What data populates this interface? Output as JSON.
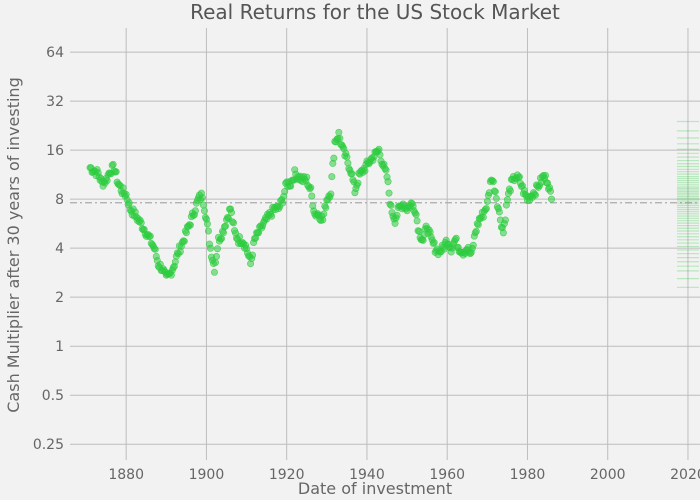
{
  "chart_data": {
    "type": "scatter",
    "title": "Real Returns for the US Stock Market",
    "xlabel": "Date of investment",
    "ylabel": "Cash Multiplier after 30 years of investing",
    "y_scale": "log2",
    "xlim": [
      1866,
      2023
    ],
    "ylim": [
      0.2,
      90
    ],
    "x_ticks": [
      1880,
      1900,
      1920,
      1940,
      1960,
      1980,
      2000,
      2020
    ],
    "x_tick_labels": [
      "1880",
      "1900",
      "1920",
      "1940",
      "1960",
      "1980",
      "2000",
      "2020"
    ],
    "y_ticks": [
      0.25,
      0.5,
      1,
      2,
      4,
      8,
      16,
      32,
      64
    ],
    "y_tick_labels": [
      "0.25",
      "0.5",
      "1",
      "2",
      "4",
      "8",
      "16",
      "32",
      "64"
    ],
    "grid": true,
    "colors": {
      "points": "#2ecc40",
      "background": "#f2f2f2",
      "grid": "#bdbdbd"
    },
    "reference_line": {
      "y": 7.6,
      "style": "dash-dot"
    },
    "series": [
      {
        "x": [
          1871,
          1872,
          1873,
          1874,
          1875,
          1876,
          1877,
          1878,
          1879,
          1880,
          1881,
          1882,
          1883,
          1884,
          1885,
          1886,
          1887,
          1888,
          1889,
          1890,
          1891,
          1892,
          1893,
          1894,
          1895,
          1896,
          1897,
          1898,
          1899,
          1900,
          1901,
          1902,
          1903,
          1904,
          1905,
          1906,
          1907,
          1908,
          1909,
          1910,
          1911,
          1912,
          1913,
          1914,
          1915,
          1916,
          1917,
          1918,
          1919,
          1920,
          1921,
          1922,
          1923,
          1924,
          1925,
          1926,
          1927,
          1928,
          1929,
          1930,
          1931,
          1932,
          1933,
          1934,
          1935,
          1936,
          1937,
          1938,
          1939,
          1940,
          1941,
          1942,
          1943,
          1944,
          1945,
          1946,
          1947,
          1948,
          1949,
          1950,
          1951,
          1952,
          1953,
          1954,
          1955,
          1956,
          1957,
          1958,
          1959,
          1960,
          1961,
          1962,
          1963,
          1964,
          1965,
          1966,
          1967,
          1968,
          1969,
          1970,
          1971,
          1972,
          1973,
          1974,
          1975,
          1976,
          1977,
          1978,
          1979,
          1980,
          1981,
          1982,
          1983,
          1984,
          1985,
          1986
        ],
        "y": [
          12.5,
          12,
          11.5,
          10,
          10.5,
          12,
          12.5,
          10,
          9,
          8.5,
          7,
          6.5,
          6,
          5.5,
          5,
          4.5,
          4,
          3.2,
          3,
          2.6,
          2.8,
          3.2,
          3.8,
          4.3,
          5,
          5.8,
          6.8,
          8,
          8.5,
          6,
          4,
          3,
          4.5,
          5,
          6,
          7,
          5,
          4.5,
          4.5,
          4,
          3.2,
          4.5,
          5,
          5.5,
          6,
          6.5,
          7,
          7,
          8,
          10,
          10,
          11.5,
          11,
          10.5,
          10.5,
          9,
          6.5,
          6.5,
          6,
          8,
          9,
          18,
          20,
          16,
          14,
          12,
          9,
          11,
          12,
          13,
          14,
          15,
          16,
          13,
          11,
          7,
          6,
          7,
          7.5,
          7,
          7.5,
          7,
          5,
          4.5,
          5.5,
          4.5,
          4,
          3.8,
          4,
          4.5,
          4,
          4.5,
          4,
          3.8,
          4,
          3.6,
          5,
          6,
          6.5,
          7.5,
          11,
          9,
          6.5,
          5,
          8,
          10,
          11,
          10.5,
          9,
          8,
          8.5,
          9,
          10,
          11,
          10.5,
          8
        ]
      }
    ],
    "distribution": {
      "x": 2020,
      "values": [
        2.3,
        2.6,
        2.9,
        3.1,
        3.3,
        3.5,
        3.7,
        3.9,
        4.1,
        4.3,
        4.5,
        4.7,
        4.9,
        5.1,
        5.3,
        5.5,
        5.7,
        5.9,
        6.1,
        6.3,
        6.5,
        6.7,
        6.9,
        7.1,
        7.3,
        7.5,
        7.7,
        7.9,
        8.1,
        8.3,
        8.5,
        8.7,
        8.9,
        9.1,
        9.3,
        9.5,
        9.8,
        10.1,
        10.4,
        10.7,
        11,
        11.4,
        11.8,
        12.2,
        12.7,
        13.2,
        13.8,
        14.5,
        15.3,
        16.2,
        17.5,
        19,
        21,
        24
      ]
    }
  }
}
